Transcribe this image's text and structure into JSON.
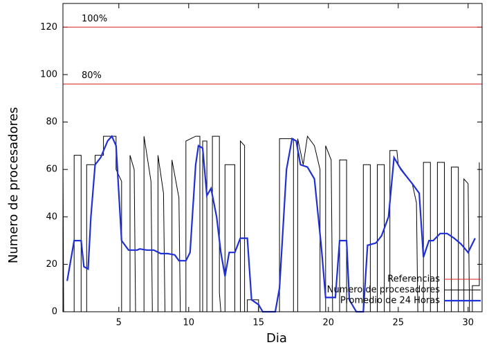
{
  "chart_data": {
    "type": "line",
    "x_label": "Dia",
    "y_label": "Numero de procesadores",
    "xlim": [
      1,
      31
    ],
    "ylim": [
      0,
      130
    ],
    "xticks": [
      5,
      10,
      15,
      20,
      25,
      30
    ],
    "yticks": [
      0,
      20,
      40,
      60,
      80,
      100,
      120
    ],
    "legend": "bottom-right",
    "references": {
      "name": "Referencias",
      "color": "#d62020",
      "lines": [
        {
          "value": 120,
          "label": "100%"
        },
        {
          "value": 96,
          "label": "80%"
        }
      ]
    },
    "series": [
      {
        "name": "Numero de procesadores",
        "color": "#000000",
        "width": 1,
        "x": [
          1,
          1.05,
          1.8,
          1.8,
          2.3,
          2.3,
          2.7,
          2.7,
          3.3,
          3.3,
          3.9,
          3.9,
          4.8,
          4.8,
          5.2,
          5.2,
          5.8,
          5.8,
          6.1,
          6.2,
          6.8,
          6.8,
          7.3,
          7.4,
          7.8,
          7.8,
          8.2,
          8.3,
          8.8,
          8.8,
          9.3,
          9.4,
          9.8,
          9.8,
          10.5,
          10.8,
          10.8,
          11.0,
          11.0,
          11.3,
          11.3,
          11.7,
          11.7,
          12.2,
          12.2,
          12.3,
          12.6,
          12.6,
          13.3,
          13.3,
          13.7,
          13.7,
          14.0,
          14.0,
          14.2,
          14.2,
          15,
          15,
          16.5,
          16.5,
          17.5,
          17.5,
          17.8,
          17.8,
          18.2,
          18.5,
          19,
          19.4,
          19.4,
          19.8,
          19.8,
          20.2,
          20.3,
          20.8,
          20.8,
          21.3,
          21.3,
          22.5,
          22.5,
          23,
          23,
          23.5,
          23.5,
          24,
          24,
          24.4,
          24.4,
          24.9,
          25,
          26,
          26.3,
          26.4,
          26.8,
          26.8,
          27.3,
          27.3,
          27.8,
          27.8,
          28.3,
          28.3,
          28.8,
          28.8,
          29.3,
          29.3,
          29.7,
          29.7,
          30,
          30.1,
          30.3,
          30.3,
          30.8,
          30.8
        ],
        "values": [
          68,
          0,
          0,
          66,
          66,
          0,
          0,
          62,
          62,
          66,
          66,
          74,
          74,
          60,
          55,
          0,
          0,
          66,
          60,
          0,
          0,
          74,
          55,
          0,
          0,
          66,
          50,
          0,
          0,
          64,
          48,
          0,
          0,
          72,
          74,
          74,
          0,
          0,
          72,
          72,
          0,
          0,
          74,
          74,
          8,
          0,
          0,
          62,
          62,
          0,
          0,
          72,
          70,
          0,
          0,
          5,
          5,
          0,
          0,
          73,
          73,
          0,
          0,
          73,
          62,
          74,
          70,
          60,
          0,
          0,
          70,
          64,
          0,
          0,
          64,
          64,
          0,
          0,
          62,
          62,
          0,
          0,
          62,
          62,
          0,
          0,
          68,
          68,
          62,
          54,
          46,
          0,
          0,
          63,
          63,
          0,
          0,
          63,
          63,
          0,
          0,
          61,
          61,
          0,
          0,
          56,
          54,
          0,
          0,
          11,
          11,
          63
        ]
      },
      {
        "name": "Promedio de 24 Horas",
        "color": "#1f2fd6",
        "width": 2.2,
        "x": [
          1.3,
          1.8,
          2.3,
          2.5,
          2.8,
          3.0,
          3.3,
          3.7,
          4.2,
          4.5,
          4.8,
          5.2,
          5.7,
          6.3,
          6.5,
          7,
          7.5,
          8,
          8.5,
          9,
          9.3,
          9.8,
          10.1,
          10.5,
          10.7,
          11,
          11.3,
          11.6,
          12,
          12.3,
          12.6,
          12.9,
          13.3,
          13.7,
          14.2,
          14.5,
          15,
          15.3,
          16.2,
          16.5,
          17,
          17.4,
          17.7,
          18,
          18.5,
          19,
          19.5,
          19.8,
          20.5,
          20.8,
          21.3,
          21.5,
          22,
          22.5,
          22.8,
          23.4,
          23.8,
          24.3,
          24.7,
          25.2,
          26,
          26.5,
          26.8,
          27.2,
          27.5,
          28,
          28.5,
          29,
          29.5,
          30,
          30.5
        ],
        "values": [
          13,
          30,
          30,
          19,
          18,
          40,
          62,
          65,
          72,
          74,
          70,
          30,
          26,
          26,
          26.5,
          26,
          26,
          24.5,
          24.5,
          24,
          21.5,
          21.5,
          25,
          62,
          70,
          69,
          49,
          52,
          40,
          25,
          15,
          25,
          25,
          31,
          31,
          5,
          3,
          0,
          0,
          10,
          60,
          73,
          72,
          62,
          61,
          56,
          27,
          6,
          6,
          30,
          30,
          5,
          0,
          0,
          28,
          29,
          32,
          40,
          65,
          60,
          54,
          50,
          23,
          30,
          30,
          33,
          33,
          31,
          28.5,
          25,
          31
        ]
      }
    ]
  }
}
